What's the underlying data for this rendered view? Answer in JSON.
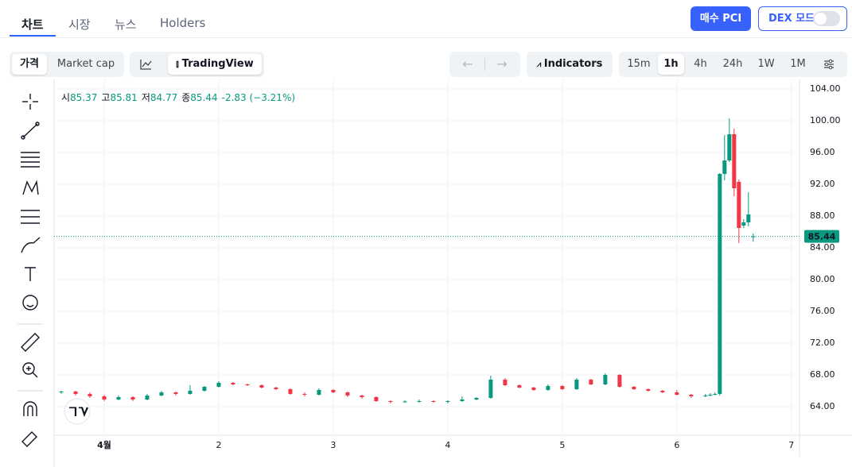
{
  "tabs": [
    "차트",
    "시장",
    "뉴스",
    "Holders"
  ],
  "header_buttons": {
    "buy": "매수 PCI",
    "dex_mode": "DEX 모드"
  },
  "toolbar": {
    "price_modes": [
      "가격",
      "Market cap"
    ],
    "chart_style": "TradingView",
    "indicators": "Indicators",
    "intervals": [
      "15m",
      "1h",
      "4h",
      "24h",
      "1W",
      "1M"
    ]
  },
  "chart_data": {
    "type": "candlestick",
    "legend": [
      {
        "label": "시",
        "value": "85.37"
      },
      {
        "label": "고",
        "value": "85.81"
      },
      {
        "label": "저",
        "value": "84.77"
      },
      {
        "label": "종",
        "value": "85.44"
      }
    ],
    "change": "-2.83 (−3.21%)",
    "up_color": "#089981",
    "down_color": "#f23645",
    "last_price": 85.44,
    "xlim": [
      -10.5,
      145.7
    ],
    "xticks": [
      {
        "value": 0,
        "label": "4월"
      },
      {
        "value": 24,
        "label": "2"
      },
      {
        "value": 48,
        "label": "3"
      },
      {
        "value": 72,
        "label": "4"
      },
      {
        "value": 96,
        "label": "5"
      },
      {
        "value": 120,
        "label": "6"
      },
      {
        "value": 144,
        "label": "7"
      }
    ],
    "ylim": [
      60.4,
      105.2
    ],
    "yticks": [
      {
        "value": 64,
        "label": "64.00"
      },
      {
        "value": 68,
        "label": "68.00"
      },
      {
        "value": 72,
        "label": "72.00"
      },
      {
        "value": 76,
        "label": "76.00"
      },
      {
        "value": 80,
        "label": "80.00"
      },
      {
        "value": 84,
        "label": "84.00"
      },
      {
        "value": 88,
        "label": "88.00"
      },
      {
        "value": 92,
        "label": "92.00"
      },
      {
        "value": 96,
        "label": "96.00"
      },
      {
        "value": 100,
        "label": "100.00"
      },
      {
        "value": 104,
        "label": "104.00"
      }
    ],
    "grid": true,
    "series": [
      {
        "x": [
          -9,
          -6,
          -3,
          0,
          3,
          6,
          9,
          12,
          15,
          18,
          21,
          24,
          27,
          30,
          33,
          36,
          39,
          42,
          45,
          48,
          51,
          54,
          57,
          60,
          63,
          66,
          69,
          72,
          75,
          78,
          81,
          84,
          87,
          90,
          93,
          96,
          99,
          102,
          105,
          108,
          111,
          114,
          117,
          120,
          123,
          126,
          127,
          128,
          129,
          130,
          131,
          132,
          133,
          134,
          135,
          136
        ],
        "open": [
          65.8,
          65.9,
          65.6,
          65.3,
          64.9,
          65.2,
          64.9,
          65.4,
          65.8,
          65.6,
          66.0,
          66.5,
          67.0,
          66.8,
          66.7,
          66.4,
          66.2,
          65.6,
          65.5,
          66.1,
          65.8,
          65.4,
          65.2,
          64.7,
          64.6,
          64.65,
          64.7,
          64.6,
          64.7,
          64.9,
          65.1,
          67.4,
          66.7,
          66.4,
          66.1,
          66.6,
          66.2,
          67.4,
          66.8,
          68.0,
          66.5,
          66.2,
          66.0,
          65.8,
          65.5,
          65.3,
          65.4,
          65.5,
          65.6,
          93.3,
          95.0,
          98.3,
          92.3,
          86.8,
          87.2,
          85.37
        ],
        "high": [
          66.0,
          66.0,
          65.8,
          65.5,
          65.4,
          65.3,
          65.6,
          66.0,
          65.9,
          66.7,
          66.6,
          67.2,
          67.1,
          66.9,
          66.8,
          66.5,
          66.3,
          65.8,
          66.3,
          66.2,
          65.9,
          65.5,
          65.3,
          64.8,
          64.8,
          64.9,
          64.8,
          64.8,
          65.3,
          65.2,
          67.9,
          67.6,
          66.8,
          66.5,
          66.8,
          66.7,
          67.6,
          67.5,
          68.2,
          68.1,
          66.6,
          66.3,
          66.1,
          66.1,
          65.6,
          65.6,
          65.7,
          65.8,
          93.4,
          98.2,
          100.3,
          99.0,
          92.6,
          87.6,
          91.0,
          85.81
        ],
        "low": [
          65.6,
          65.4,
          65.1,
          64.7,
          64.8,
          64.7,
          64.8,
          65.3,
          65.4,
          65.5,
          65.9,
          66.4,
          66.7,
          66.6,
          66.3,
          66.1,
          65.5,
          65.3,
          65.4,
          65.7,
          65.2,
          65.0,
          64.6,
          64.4,
          64.5,
          64.5,
          64.5,
          64.4,
          64.6,
          64.8,
          65.0,
          66.6,
          66.3,
          66.0,
          66.0,
          66.1,
          66.1,
          66.7,
          66.7,
          66.4,
          66.1,
          65.9,
          65.7,
          65.4,
          65.1,
          65.2,
          65.3,
          65.4,
          65.4,
          92.5,
          94.8,
          90.5,
          84.6,
          86.5,
          86.7,
          84.77
        ],
        "close": [
          65.9,
          65.6,
          65.3,
          64.9,
          65.2,
          64.9,
          65.4,
          65.8,
          65.6,
          66.0,
          66.5,
          67.0,
          66.8,
          66.7,
          66.4,
          66.2,
          65.6,
          65.5,
          66.1,
          65.8,
          65.4,
          65.2,
          64.7,
          64.6,
          64.65,
          64.7,
          64.6,
          64.7,
          64.9,
          65.1,
          67.4,
          66.7,
          66.4,
          66.1,
          66.6,
          66.2,
          67.4,
          66.8,
          68.0,
          66.5,
          66.2,
          66.0,
          65.8,
          65.5,
          65.3,
          65.4,
          65.5,
          65.6,
          93.3,
          95.0,
          98.3,
          91.5,
          86.5,
          87.2,
          88.2,
          85.44
        ]
      }
    ]
  }
}
